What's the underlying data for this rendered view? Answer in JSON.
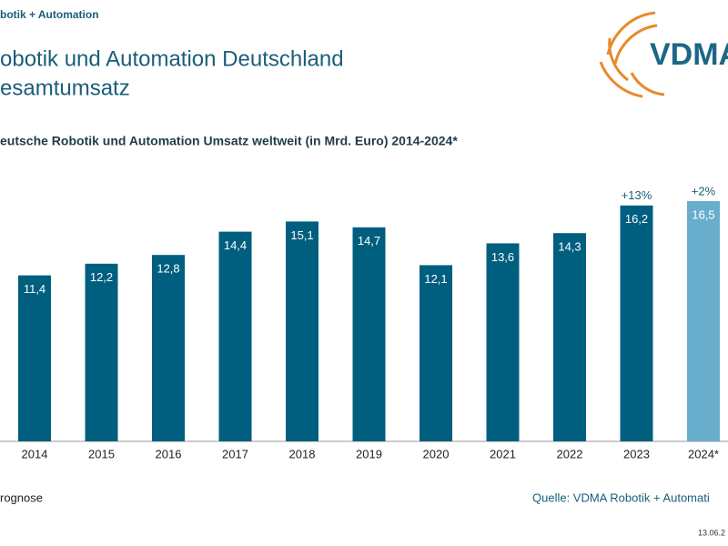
{
  "chart_data": {
    "type": "bar",
    "header": "botik + Automation",
    "title_lines": [
      "obotik und Automation Deutschland",
      "esamtumsatz"
    ],
    "subtitle": "eutsche Robotik und Automation Umsatz weltweit (in Mrd. Euro) 2014-2024*",
    "categories": [
      "2014",
      "2015",
      "2016",
      "2017",
      "2018",
      "2019",
      "2020",
      "2021",
      "2022",
      "2023",
      "2024*"
    ],
    "values": [
      11.4,
      12.2,
      12.8,
      14.4,
      15.1,
      14.7,
      12.1,
      13.6,
      14.3,
      16.2,
      16.5
    ],
    "value_labels": [
      "11,4",
      "12,2",
      "12,8",
      "14,4",
      "15,1",
      "14,7",
      "12,1",
      "13,6",
      "14,3",
      "16,2",
      "16,5"
    ],
    "colors": [
      "#005f7f",
      "#005f7f",
      "#005f7f",
      "#005f7f",
      "#005f7f",
      "#005f7f",
      "#005f7f",
      "#005f7f",
      "#005f7f",
      "#005f7f",
      "#6aaecd"
    ],
    "growth_labels": [
      null,
      null,
      null,
      null,
      null,
      null,
      null,
      null,
      null,
      "+13%",
      "+2%"
    ],
    "footnote": "rognose",
    "source": "Quelle: VDMA Robotik + Automati",
    "date": "13.06.2",
    "logo_text": "VDMA"
  }
}
